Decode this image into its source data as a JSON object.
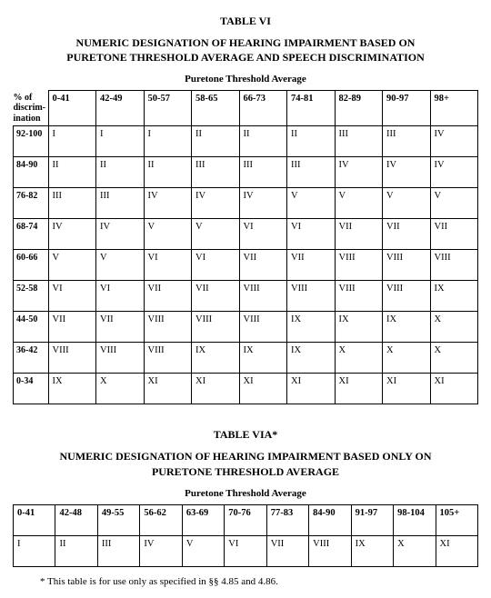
{
  "table6": {
    "title": "TABLE VI",
    "subtitle_line1": "NUMERIC DESIGNATION OF HEARING IMPAIRMENT BASED ON",
    "subtitle_line2": "PURETONE THRESHOLD AVERAGE AND SPEECH DISCRIMINATION",
    "caption": "Puretone Threshold Average",
    "side_label_line1": "% of",
    "side_label_line2": "discrim-",
    "side_label_line3": "ination",
    "col_headers": [
      "0-41",
      "42-49",
      "50-57",
      "58-65",
      "66-73",
      "74-81",
      "82-89",
      "90-97",
      "98+"
    ],
    "rows": [
      {
        "label": "92-100",
        "cells": [
          "I",
          "I",
          "I",
          "II",
          "II",
          "II",
          "III",
          "III",
          "IV"
        ]
      },
      {
        "label": "84-90",
        "cells": [
          "II",
          "II",
          "II",
          "III",
          "III",
          "III",
          "IV",
          "IV",
          "IV"
        ]
      },
      {
        "label": "76-82",
        "cells": [
          "III",
          "III",
          "IV",
          "IV",
          "IV",
          "V",
          "V",
          "V",
          "V"
        ]
      },
      {
        "label": "68-74",
        "cells": [
          "IV",
          "IV",
          "V",
          "V",
          "VI",
          "VI",
          "VII",
          "VII",
          "VII"
        ]
      },
      {
        "label": "60-66",
        "cells": [
          "V",
          "V",
          "VI",
          "VI",
          "VII",
          "VII",
          "VIII",
          "VIII",
          "VIII"
        ]
      },
      {
        "label": "52-58",
        "cells": [
          "VI",
          "VI",
          "VII",
          "VII",
          "VIII",
          "VIII",
          "VIII",
          "VIII",
          "IX"
        ]
      },
      {
        "label": "44-50",
        "cells": [
          "VII",
          "VII",
          "VIII",
          "VIII",
          "VIII",
          "IX",
          "IX",
          "IX",
          "X"
        ]
      },
      {
        "label": "36-42",
        "cells": [
          "VIII",
          "VIII",
          "VIII",
          "IX",
          "IX",
          "IX",
          "X",
          "X",
          "X"
        ]
      },
      {
        "label": "0-34",
        "cells": [
          "IX",
          "X",
          "XI",
          "XI",
          "XI",
          "XI",
          "XI",
          "XI",
          "XI"
        ]
      }
    ]
  },
  "table6a": {
    "title": "TABLE VIA*",
    "subtitle_line1": "NUMERIC DESIGNATION OF HEARING IMPAIRMENT BASED ONLY ON",
    "subtitle_line2": "PURETONE THRESHOLD AVERAGE",
    "caption": "Puretone Threshold Average",
    "col_headers": [
      "0-41",
      "42-48",
      "49-55",
      "56-62",
      "63-69",
      "70-76",
      "77-83",
      "84-90",
      "91-97",
      "98-104",
      "105+"
    ],
    "row_cells": [
      "I",
      "II",
      "III",
      "IV",
      "V",
      "VI",
      "VII",
      "VIII",
      "IX",
      "X",
      "XI"
    ],
    "footnote": "* This table is for use only as specified in §§ 4.85 and 4.86."
  }
}
